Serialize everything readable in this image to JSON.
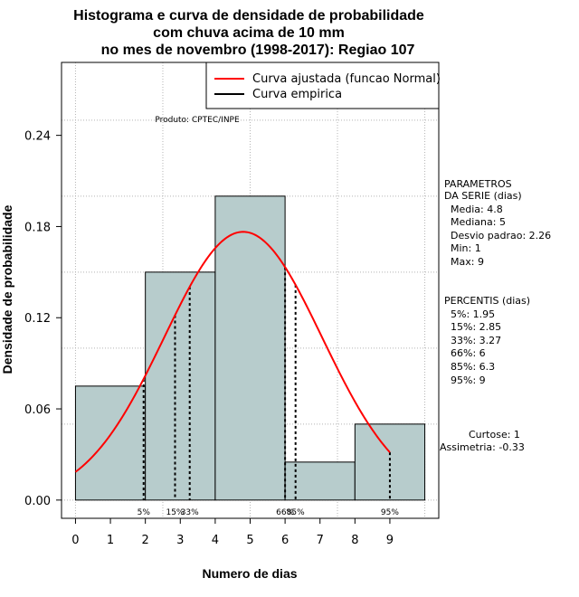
{
  "chart_data": {
    "type": "bar",
    "title_lines": [
      "Histograma e curva de densidade de probabilidade",
      "com chuva acima de 10 mm",
      "no mes de novembro (1998-2017): Regiao 107"
    ],
    "xlabel": "Numero de dias",
    "ylabel": "Densidade de probabilidade",
    "xlim": [
      -0.4,
      10.4
    ],
    "ylim": [
      -0.012,
      0.288
    ],
    "x_ticks": [
      0,
      1,
      2,
      3,
      4,
      5,
      6,
      7,
      8,
      9
    ],
    "y_ticks": [
      0.0,
      0.06,
      0.12,
      0.18,
      0.24
    ],
    "y_tick_labels": [
      "0.00",
      "0.06",
      "0.12",
      "0.18",
      "0.24"
    ],
    "bins": [
      {
        "from": 0,
        "to": 2,
        "density": 0.075
      },
      {
        "from": 2,
        "to": 4,
        "density": 0.15
      },
      {
        "from": 4,
        "to": 6,
        "density": 0.2
      },
      {
        "from": 6,
        "to": 8,
        "density": 0.025
      },
      {
        "from": 8,
        "to": 10,
        "density": 0.05
      }
    ],
    "normal_curve": {
      "mean": 4.8,
      "sd": 2.26,
      "x_range": [
        0,
        9
      ],
      "color": "#ff0000"
    },
    "percentile_lines": [
      {
        "label": "5%",
        "x": 1.95
      },
      {
        "label": "15%",
        "x": 2.85
      },
      {
        "label": "33%",
        "x": 3.27
      },
      {
        "label": "66%",
        "x": 6
      },
      {
        "label": "85%",
        "x": 6.3
      },
      {
        "label": "95%",
        "x": 9
      }
    ],
    "legend": [
      {
        "label": "Curva ajustada (funcao Normal)",
        "color": "#ff0000"
      },
      {
        "label": "Curva empirica",
        "color": "#000000"
      }
    ],
    "product_note": "Produto: CPTEC/INPE",
    "parameters": {
      "heading": [
        "PARAMETROS",
        "DA SERIE (dias)"
      ],
      "lines": [
        "Media: 4.8",
        "Mediana: 5",
        "Desvio padrao: 2.26",
        "Min: 1",
        "Max: 9"
      ]
    },
    "percentiles": {
      "heading": "PERCENTIS (dias)",
      "lines": [
        "5%: 1.95",
        "15%: 2.85",
        "33%: 3.27",
        "66%: 6",
        "85%: 6.3",
        "95%: 9"
      ]
    },
    "curtose": "Curtose: 1",
    "assimetria": "Assimetria: -0.33",
    "bar_color": "#b7cccc"
  }
}
